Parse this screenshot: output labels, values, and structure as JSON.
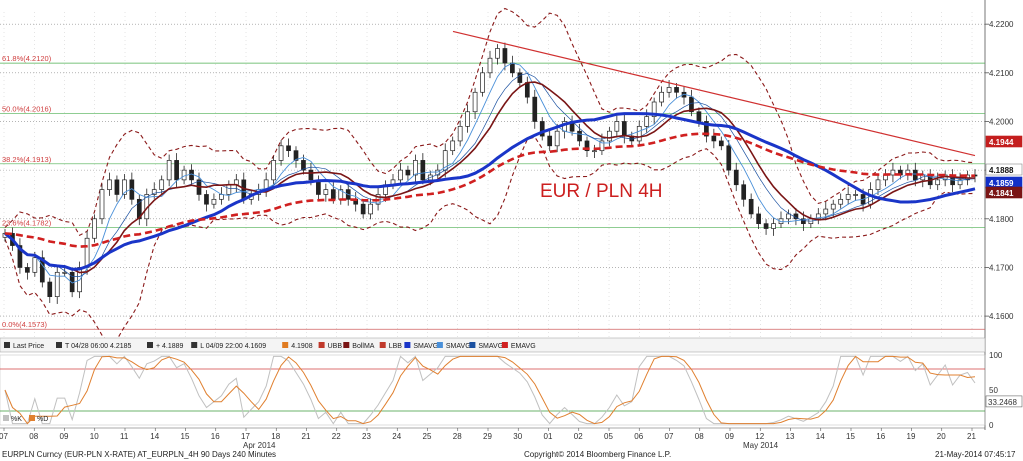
{
  "chart_data": {
    "type": "candlestick",
    "title": "EUR / PLN 4H",
    "y_ticks": [
      "4.2200",
      "4.2100",
      "4.2000",
      "4.1900",
      "4.1800",
      "4.1700",
      "4.1600"
    ],
    "ylim": [
      4.1555,
      4.2225
    ],
    "x_labels": [
      "07",
      "08",
      "09",
      "10",
      "11",
      "14",
      "15",
      "16",
      "17",
      "18",
      "21",
      "22",
      "23",
      "24",
      "25",
      "28",
      "29",
      "30",
      "01",
      "02",
      "05",
      "06",
      "07",
      "08",
      "09",
      "12",
      "13",
      "14",
      "15",
      "16",
      "19",
      "20",
      "21"
    ],
    "x_months": [
      "Apr 2014",
      "May 2014"
    ],
    "fib_levels": [
      {
        "label": "61.8%(4.2120)",
        "value": 4.212
      },
      {
        "label": "50.0%(4.2016)",
        "value": 4.2016
      },
      {
        "label": "38.2%(4.1913)",
        "value": 4.1913
      },
      {
        "label": "23.6%(4.1782)",
        "value": 4.1782
      },
      {
        "label": "0.0%(4.1573)",
        "value": 4.1573
      }
    ],
    "price_tags": [
      {
        "label": "4.1944",
        "value": 4.1944,
        "color": "#c41e1e"
      },
      {
        "label": "4.1888",
        "value": 4.1888,
        "color": "#ffffff"
      },
      {
        "label": "4.1859",
        "value": 4.1859,
        "color": "#1230c8"
      },
      {
        "label": "4.1841",
        "value": 4.1841,
        "color": "#7a1515"
      }
    ],
    "series_close": [
      4.177,
      4.1745,
      4.17,
      4.169,
      4.172,
      4.167,
      4.164,
      4.169,
      4.169,
      4.165,
      4.17,
      4.176,
      4.18,
      4.186,
      4.188,
      4.185,
      4.188,
      4.184,
      4.18,
      4.185,
      4.186,
      4.188,
      4.192,
      4.188,
      4.19,
      4.188,
      4.185,
      4.183,
      4.184,
      4.185,
      4.187,
      4.188,
      4.184,
      4.185,
      4.186,
      4.188,
      4.192,
      4.195,
      4.194,
      4.192,
      4.19,
      4.188,
      4.185,
      4.186,
      4.184,
      4.186,
      4.184,
      4.183,
      4.181,
      4.183,
      4.185,
      4.187,
      4.188,
      4.19,
      4.189,
      4.192,
      4.188,
      4.189,
      4.19,
      4.194,
      4.196,
      4.199,
      4.202,
      4.206,
      4.21,
      4.213,
      4.215,
      4.212,
      4.21,
      4.208,
      4.205,
      4.2,
      4.197,
      4.195,
      4.198,
      4.2,
      4.198,
      4.196,
      4.194,
      4.194,
      4.196,
      4.198,
      4.2,
      4.197,
      4.196,
      4.199,
      4.201,
      4.204,
      4.206,
      4.207,
      4.206,
      4.205,
      4.202,
      4.2,
      4.197,
      4.196,
      4.195,
      4.19,
      4.187,
      4.184,
      4.181,
      4.179,
      4.178,
      4.179,
      4.18,
      4.181,
      4.18,
      4.179,
      4.18,
      4.181,
      4.182,
      4.183,
      4.184,
      4.185,
      4.185,
      4.183,
      4.186,
      4.188,
      4.189,
      4.19,
      4.189,
      4.19,
      4.188,
      4.189,
      4.187,
      4.188,
      4.189,
      4.187,
      4.188,
      4.189,
      4.1888
    ],
    "osc_ticks": [
      "100",
      "50",
      "0"
    ],
    "osc_value": "33.2468",
    "osc_legend": [
      "%K",
      "%D"
    ]
  },
  "legend": {
    "items": [
      {
        "label": "Last Price",
        "color": "#333333"
      },
      {
        "label": "T 04/28 06:00 4.2185",
        "color": "#333333"
      },
      {
        "label": "+ 4.1889",
        "color": "#333333"
      },
      {
        "label": "L 04/09 22:00 4.1609",
        "color": "#333333"
      },
      {
        "label": "4.1908",
        "color": "#e07b20"
      },
      {
        "label": "UBB",
        "color": "#c0392b"
      },
      {
        "label": "BollMA",
        "color": "#7a1515"
      },
      {
        "label": "LBB",
        "color": "#c0392b"
      },
      {
        "label": "SMAVG",
        "color": "#1a35c8"
      },
      {
        "label": "SMAVG",
        "color": "#4a90d9"
      },
      {
        "label": "SMAVG",
        "color": "#1a50a0"
      },
      {
        "label": "EMAVG",
        "color": "#d02020"
      }
    ]
  },
  "footer": {
    "left": "EURPLN Curncy (EUR-PLN X-RATE) AT_EURPLN_4H 90 Days 240 Minutes",
    "center": "Copyright© 2014 Bloomberg Finance L.P.",
    "right": "21-May-2014 07:45:17"
  }
}
